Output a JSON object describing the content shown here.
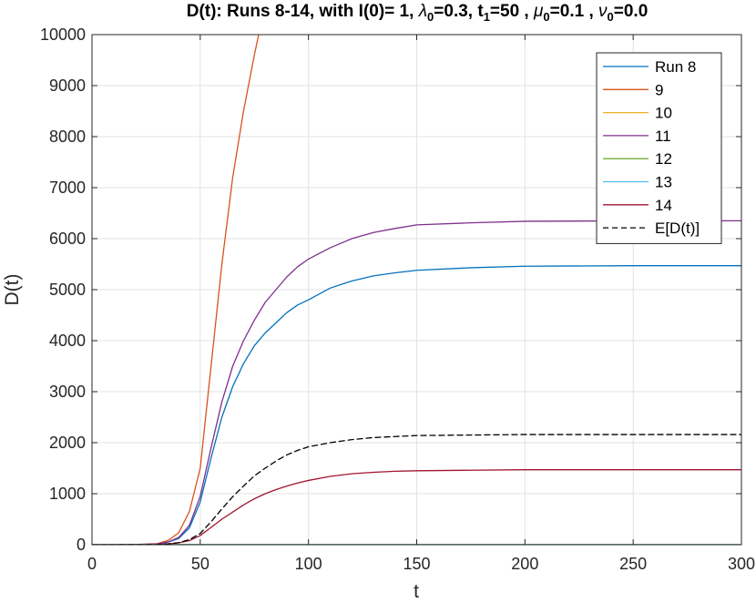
{
  "chart_data": {
    "type": "line",
    "title": "D(t): Runs 8-14, with I(0)= 1, λ0=0.3,  t1=50 , μ0=0.1 , ν0=0.0",
    "title_parts": {
      "prefix": "D(t): Runs 8-14, with I(0)= 1, ",
      "lambda_symbol": "λ",
      "lambda_sub": "0",
      "lambda_val": "=0.3,  t",
      "t_sub": "1",
      "t_val": "=50 , ",
      "mu_symbol": "μ",
      "mu_sub": "0",
      "mu_val": "=0.1 , ",
      "nu_symbol": "ν",
      "nu_sub": "0",
      "nu_val": "=0.0"
    },
    "xlabel": "t",
    "ylabel": "D(t)",
    "xlim": [
      0,
      300
    ],
    "ylim": [
      0,
      10000
    ],
    "xticks": [
      0,
      50,
      100,
      150,
      200,
      250,
      300
    ],
    "yticks": [
      0,
      1000,
      2000,
      3000,
      4000,
      5000,
      6000,
      7000,
      8000,
      9000,
      10000
    ],
    "grid": true,
    "legend_position": "top-right",
    "series": [
      {
        "name": "Run 8",
        "color": "#0072BD",
        "dash": "none",
        "x": [
          0,
          20,
          30,
          35,
          40,
          45,
          50,
          55,
          60,
          65,
          70,
          75,
          80,
          85,
          90,
          95,
          100,
          110,
          120,
          130,
          140,
          150,
          175,
          200,
          250,
          300
        ],
        "y": [
          0,
          2,
          15,
          50,
          120,
          330,
          840,
          1700,
          2500,
          3100,
          3550,
          3900,
          4150,
          4350,
          4550,
          4700,
          4800,
          5030,
          5170,
          5270,
          5330,
          5380,
          5430,
          5460,
          5470,
          5470
        ]
      },
      {
        "name": "9",
        "color": "#D95319",
        "dash": "none",
        "x": [
          0,
          20,
          30,
          35,
          40,
          45,
          50,
          55,
          60,
          65,
          70,
          75,
          77
        ],
        "y": [
          0,
          3,
          20,
          80,
          230,
          650,
          1500,
          3500,
          5500,
          7200,
          8500,
          9600,
          10000
        ]
      },
      {
        "name": "10",
        "color": "#EDB120",
        "dash": "none",
        "x": [
          0,
          300
        ],
        "y": [
          1,
          1
        ]
      },
      {
        "name": "11",
        "color": "#7E2F8E",
        "dash": "none",
        "x": [
          0,
          20,
          30,
          35,
          40,
          45,
          50,
          55,
          60,
          65,
          70,
          75,
          80,
          85,
          90,
          95,
          100,
          110,
          120,
          130,
          140,
          150,
          175,
          200,
          250,
          300
        ],
        "y": [
          0,
          2,
          15,
          50,
          140,
          380,
          950,
          1900,
          2800,
          3500,
          4000,
          4400,
          4750,
          5000,
          5250,
          5450,
          5600,
          5820,
          6000,
          6120,
          6200,
          6270,
          6310,
          6340,
          6350,
          6350
        ]
      },
      {
        "name": "12",
        "color": "#77AC30",
        "dash": "none",
        "x": [
          0,
          300
        ],
        "y": [
          1,
          1
        ]
      },
      {
        "name": "13",
        "color": "#4DBEEE",
        "dash": "none",
        "x": [
          0,
          300
        ],
        "y": [
          1,
          1
        ]
      },
      {
        "name": "14",
        "color": "#A2142F",
        "dash": "none",
        "x": [
          0,
          20,
          30,
          35,
          40,
          45,
          50,
          55,
          60,
          65,
          70,
          75,
          80,
          85,
          90,
          95,
          100,
          110,
          120,
          130,
          140,
          150,
          175,
          200,
          250,
          300
        ],
        "y": [
          0,
          1,
          5,
          15,
          35,
          80,
          180,
          340,
          500,
          640,
          780,
          900,
          1000,
          1080,
          1150,
          1210,
          1260,
          1340,
          1390,
          1420,
          1440,
          1450,
          1460,
          1470,
          1470,
          1470
        ]
      },
      {
        "name": "E[D(t)]",
        "color": "#000000",
        "dash": "6,4",
        "x": [
          0,
          20,
          30,
          35,
          40,
          45,
          50,
          55,
          60,
          65,
          70,
          75,
          80,
          85,
          90,
          95,
          100,
          110,
          120,
          130,
          140,
          150,
          175,
          200,
          250,
          300
        ],
        "y": [
          0,
          1,
          5,
          15,
          40,
          100,
          220,
          450,
          700,
          940,
          1150,
          1350,
          1500,
          1640,
          1760,
          1850,
          1920,
          2000,
          2060,
          2100,
          2120,
          2140,
          2150,
          2160,
          2160,
          2160
        ]
      }
    ]
  }
}
